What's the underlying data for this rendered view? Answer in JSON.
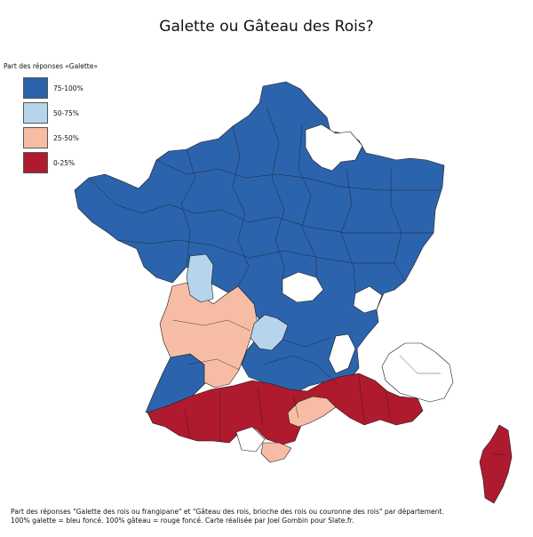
{
  "title": "Galette ou Gâteau des Rois?",
  "legend": {
    "title": "Part des réponses «Galette»",
    "items": [
      {
        "label": "75-100%",
        "color": "#2c63ad"
      },
      {
        "label": "50-75%",
        "color": "#b6d5ec"
      },
      {
        "label": "25-50%",
        "color": "#f6bda4"
      },
      {
        "label": "0-25%",
        "color": "#b01a2e"
      }
    ]
  },
  "colors": {
    "blue": "#2c63ad",
    "light_blue": "#b6d5ec",
    "salmon": "#f6bda4",
    "red": "#b01a2e",
    "white": "#ffffff",
    "border": "#1a1a1a"
  },
  "footer": {
    "line1": "Part des réponses \"Galette des rois ou frangipane\" et \"Gâteau des rois, brioche des rois ou couronne des rois\" par département.",
    "line2": "100% galette = bleu foncé. 100% gâteau = rouge foncé. Carte réalisée par Joel Gombin pour Slate.fr."
  }
}
